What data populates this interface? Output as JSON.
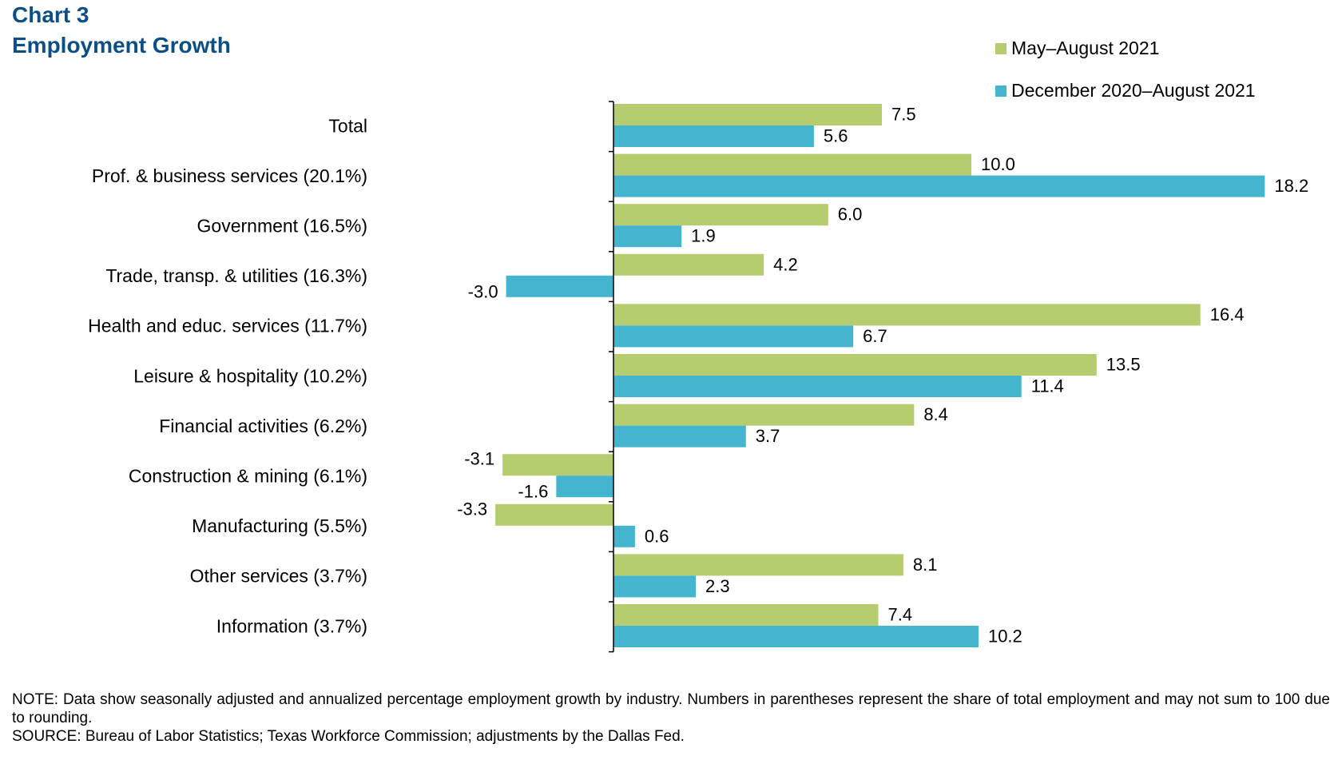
{
  "chart_data": {
    "type": "bar",
    "orientation": "horizontal",
    "title_line1": "Chart 3",
    "title_line2": "Employment Growth",
    "categories": [
      "Total",
      "Prof. & business services (20.1%)",
      "Government (16.5%)",
      "Trade, transp. & utilities (16.3%)",
      "Health and educ. services (11.7%)",
      "Leisure & hospitality (10.2%)",
      "Financial activities (6.2%)",
      "Construction & mining (6.1%)",
      "Manufacturing (5.5%)",
      "Other services (3.7%)",
      "Information (3.7%)"
    ],
    "series": [
      {
        "name": "May–August 2021",
        "color": "#b5cc6f",
        "values": [
          7.5,
          10.0,
          6.0,
          4.2,
          16.4,
          13.5,
          8.4,
          -3.1,
          -3.3,
          8.1,
          7.4
        ],
        "labels": [
          "7.5",
          "10.0",
          "6.0",
          "4.2",
          "16.4",
          "13.5",
          "8.4",
          "-3.1",
          "-3.3",
          "8.1",
          "7.4"
        ]
      },
      {
        "name": "December 2020–August 2021",
        "color": "#44b4cf",
        "values": [
          5.6,
          18.2,
          1.9,
          -3.0,
          6.7,
          11.4,
          3.7,
          -1.6,
          0.6,
          2.3,
          10.2
        ],
        "labels": [
          "5.6",
          "18.2",
          "1.9",
          "-3.0",
          "6.7",
          "11.4",
          "3.7",
          "-1.6",
          "0.6",
          "2.3",
          "10.2"
        ]
      }
    ],
    "xlim": [
      -5,
      20
    ],
    "xlabel": "",
    "ylabel": "",
    "grid": false,
    "legend_position": "top-right"
  },
  "footer": {
    "note": "NOTE: Data show seasonally adjusted and annualized percentage employment growth by industry. Numbers in parentheses represent the share of total employment and may not sum to 100 due to rounding.",
    "source": "SOURCE: Bureau of Labor Statistics; Texas Workforce Commission; adjustments by the Dallas Fed."
  }
}
